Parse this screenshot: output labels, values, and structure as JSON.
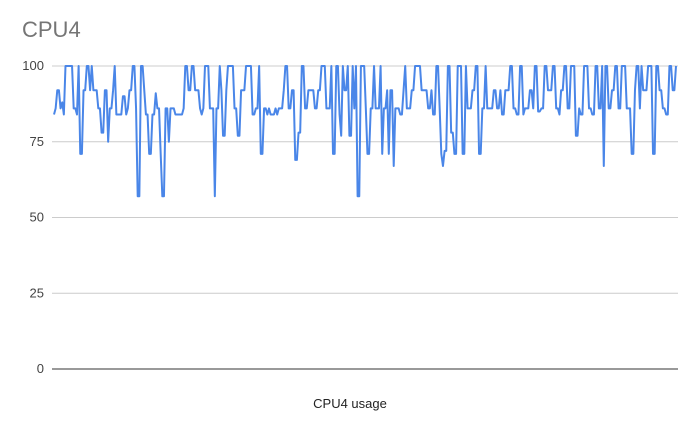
{
  "chart_data": {
    "type": "line",
    "title": "CPU4",
    "xlabel": "CPU4 usage",
    "ylabel": "",
    "ylim": [
      0,
      100
    ],
    "yticks": [
      0,
      25,
      50,
      75,
      100
    ],
    "grid": true,
    "series": [
      {
        "color": "#4a86e8",
        "values": [
          84,
          86,
          92,
          92,
          86,
          88,
          84,
          100,
          100,
          100,
          100,
          100,
          86,
          86,
          84,
          100,
          71,
          71,
          92,
          92,
          100,
          100,
          92,
          100,
          92,
          92,
          92,
          86,
          86,
          78,
          78,
          92,
          92,
          75,
          86,
          86,
          92,
          100,
          84,
          84,
          84,
          84,
          90,
          90,
          84,
          86,
          92,
          92,
          100,
          100,
          86,
          57,
          57,
          100,
          100,
          92,
          84,
          84,
          71,
          71,
          84,
          84,
          91,
          86,
          86,
          71,
          57,
          57,
          86,
          86,
          75,
          86,
          86,
          86,
          84,
          84,
          84,
          84,
          84,
          86,
          100,
          100,
          92,
          92,
          100,
          100,
          92,
          92,
          92,
          86,
          84,
          86,
          100,
          100,
          100,
          86,
          86,
          86,
          57,
          86,
          86,
          100,
          92,
          77,
          77,
          92,
          100,
          100,
          100,
          100,
          86,
          86,
          77,
          77,
          92,
          92,
          92,
          100,
          100,
          100,
          100,
          84,
          84,
          86,
          86,
          100,
          71,
          71,
          86,
          86,
          84,
          86,
          84,
          84,
          84,
          86,
          84,
          86,
          86,
          86,
          92,
          100,
          100,
          86,
          86,
          92,
          92,
          69,
          69,
          78,
          78,
          100,
          100,
          86,
          86,
          92,
          92,
          92,
          92,
          86,
          86,
          92,
          92,
          100,
          100,
          100,
          86,
          86,
          86,
          100,
          71,
          71,
          100,
          100,
          84,
          77,
          100,
          92,
          92,
          100,
          77,
          77,
          100,
          86,
          100,
          57,
          57,
          100,
          100,
          100,
          86,
          71,
          71,
          86,
          86,
          100,
          86,
          86,
          86,
          100,
          71,
          86,
          86,
          92,
          71,
          92,
          92,
          67,
          86,
          86,
          86,
          84,
          84,
          92,
          100,
          86,
          86,
          86,
          92,
          92,
          100,
          100,
          100,
          100,
          92,
          92,
          92,
          92,
          86,
          86,
          92,
          84,
          84,
          100,
          100,
          86,
          71,
          67,
          72,
          72,
          100,
          100,
          78,
          78,
          71,
          71,
          100,
          100,
          100,
          71,
          71,
          100,
          86,
          86,
          86,
          92,
          92,
          100,
          100,
          71,
          71,
          86,
          86,
          100,
          86,
          86,
          86,
          86,
          92,
          92,
          86,
          86,
          92,
          84,
          84,
          92,
          92,
          92,
          100,
          100,
          86,
          86,
          84,
          84,
          100,
          100,
          84,
          86,
          86,
          86,
          92,
          92,
          86,
          100,
          100,
          85,
          85,
          86,
          86,
          100,
          100,
          92,
          92,
          92,
          100,
          100,
          86,
          86,
          84,
          92,
          92,
          100,
          100,
          86,
          86,
          100,
          100,
          100,
          77,
          77,
          86,
          84,
          84,
          100,
          100,
          100,
          86,
          86,
          84,
          84,
          100,
          100,
          86,
          86,
          100,
          67,
          100,
          100,
          86,
          86,
          92,
          92,
          100,
          100,
          86,
          86,
          100,
          100,
          100,
          86,
          86,
          86,
          71,
          71,
          92,
          100,
          100,
          86,
          100,
          92,
          92,
          92,
          100,
          100,
          100,
          71,
          71,
          100,
          100,
          92,
          92,
          86,
          86,
          84,
          84,
          100,
          100,
          92,
          92,
          100
        ]
      }
    ]
  }
}
